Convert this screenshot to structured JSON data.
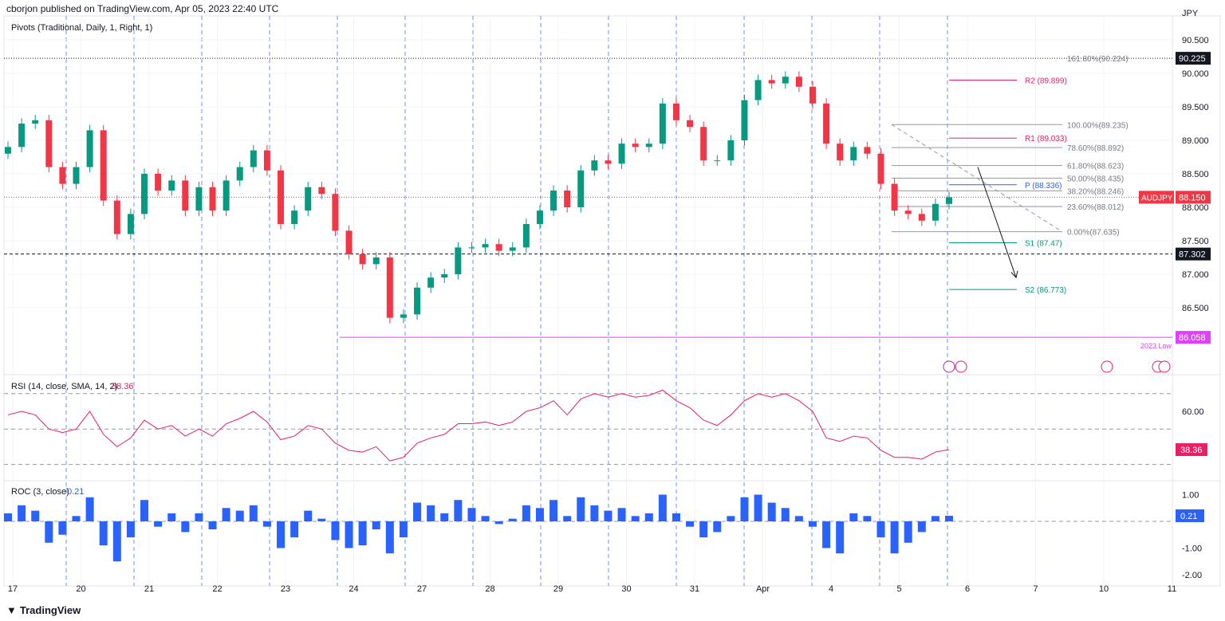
{
  "header": {
    "published": "cborjon published on TradingView.com, Apr 05, 2023 22:40 UTC",
    "currency": "JPY"
  },
  "footer": {
    "logo": "TradingView"
  },
  "colors": {
    "up": "#089981",
    "down": "#f23645",
    "rsi": "#e91e63",
    "roc": "#2962ff",
    "pivot_r": "#e91e63",
    "pivot_p": "#2962ff",
    "pivot_s": "#089981",
    "low_line": "#e040fb",
    "sep": "#2962ff"
  },
  "chart_data": [
    {
      "type": "candlestick",
      "title": "Pivots (Traditional, Daily, 1, Right, 1)",
      "symbol": "AUDJPY",
      "last": "88.150",
      "ylim": [
        85.8,
        90.7
      ],
      "y_ticks": [
        "90.500",
        "90.000",
        "89.500",
        "89.000",
        "88.500",
        "88.000",
        "87.500",
        "87.000",
        "86.500"
      ],
      "x_ticks": [
        "17",
        "20",
        "21",
        "22",
        "23",
        "24",
        "27",
        "28",
        "29",
        "30",
        "31",
        "Apr",
        "4",
        "5",
        "6",
        "7",
        "10",
        "11"
      ],
      "close": [
        88.9,
        89.25,
        89.3,
        88.6,
        88.35,
        88.6,
        89.15,
        88.1,
        87.6,
        87.9,
        88.5,
        88.25,
        88.4,
        87.95,
        88.3,
        87.95,
        88.4,
        88.6,
        88.85,
        88.55,
        87.75,
        87.95,
        88.3,
        88.2,
        87.65,
        87.3,
        87.15,
        87.25,
        86.35,
        86.4,
        86.8,
        86.95,
        87.0,
        87.4,
        87.4,
        87.45,
        87.35,
        87.4,
        87.75,
        87.95,
        88.25,
        88.0,
        88.55,
        88.7,
        88.65,
        88.95,
        88.9,
        88.95,
        89.55,
        89.3,
        89.2,
        88.7,
        88.7,
        89.0,
        89.6,
        89.9,
        89.85,
        89.95,
        89.8,
        89.55,
        88.95,
        88.7,
        88.9,
        88.8,
        88.35,
        87.95,
        87.9,
        87.8,
        88.05,
        88.15
      ],
      "pivots": [
        {
          "label": "R2 (89.899)",
          "value": 89.899,
          "kind": "r"
        },
        {
          "label": "R1 (89.033)",
          "value": 89.033,
          "kind": "r"
        },
        {
          "label": "P (88.336)",
          "value": 88.336,
          "kind": "p"
        },
        {
          "label": "S1 (87.47)",
          "value": 87.47,
          "kind": "s"
        },
        {
          "label": "S2 (86.773)",
          "value": 86.773,
          "kind": "s"
        }
      ],
      "fib": [
        {
          "label": "161.80%(90.224)",
          "value": 90.224
        },
        {
          "label": "100.00%(89.235)",
          "value": 89.235
        },
        {
          "label": "78.60%(88.892)",
          "value": 88.892
        },
        {
          "label": "61.80%(88.623)",
          "value": 88.623
        },
        {
          "label": "50.00%(88.435)",
          "value": 88.435
        },
        {
          "label": "38.20%(88.246)",
          "value": 88.246
        },
        {
          "label": "23.60%(88.012)",
          "value": 88.012
        },
        {
          "label": "0.00%(87.635)",
          "value": 87.635
        }
      ],
      "levels": [
        {
          "label": "90.225",
          "value": 90.225,
          "style": "dotted"
        },
        {
          "label": "87.302",
          "value": 87.302,
          "style": "dashed"
        },
        {
          "label": "86.058",
          "value": 86.058,
          "style": "low",
          "note": "2023 Low"
        }
      ]
    },
    {
      "type": "line",
      "title": "RSI (14, close, SMA, 14, 2)",
      "last": "38.36",
      "y_ticks": [
        "60.00"
      ],
      "bands": [
        70,
        50,
        30
      ],
      "values": [
        58,
        60,
        58,
        50,
        48,
        50,
        60,
        47,
        40,
        45,
        55,
        50,
        52,
        46,
        50,
        46,
        53,
        56,
        60,
        54,
        44,
        46,
        52,
        50,
        42,
        38,
        37,
        40,
        32,
        34,
        42,
        45,
        47,
        53,
        53,
        54,
        52,
        54,
        60,
        62,
        66,
        58,
        67,
        70,
        68,
        70,
        68,
        69,
        72,
        66,
        62,
        55,
        52,
        58,
        66,
        70,
        68,
        70,
        66,
        60,
        45,
        43,
        46,
        45,
        38,
        34,
        34,
        33,
        37,
        38.36
      ]
    },
    {
      "type": "bar",
      "title": "ROC (3, close)",
      "last": "0.21",
      "y_ticks": [
        "1.00",
        "-1.00",
        "-2.00"
      ],
      "values": [
        0.3,
        0.6,
        0.4,
        -0.8,
        -0.5,
        0.2,
        0.9,
        -0.9,
        -1.5,
        -0.6,
        0.8,
        -0.2,
        0.3,
        -0.4,
        0.3,
        -0.3,
        0.5,
        0.4,
        0.6,
        -0.2,
        -1.0,
        -0.6,
        0.4,
        0.1,
        -0.7,
        -1.0,
        -0.9,
        -0.3,
        -1.2,
        -0.6,
        0.7,
        0.6,
        0.3,
        0.8,
        0.5,
        0.2,
        -0.1,
        0.1,
        0.6,
        0.5,
        0.8,
        0.2,
        0.9,
        0.6,
        0.4,
        0.5,
        0.2,
        0.3,
        1.0,
        0.3,
        -0.2,
        -0.6,
        -0.4,
        0.2,
        0.9,
        1.0,
        0.7,
        0.5,
        0.2,
        -0.2,
        -1.0,
        -1.2,
        0.3,
        0.2,
        -0.6,
        -1.2,
        -0.8,
        -0.4,
        0.2,
        0.21
      ]
    }
  ]
}
